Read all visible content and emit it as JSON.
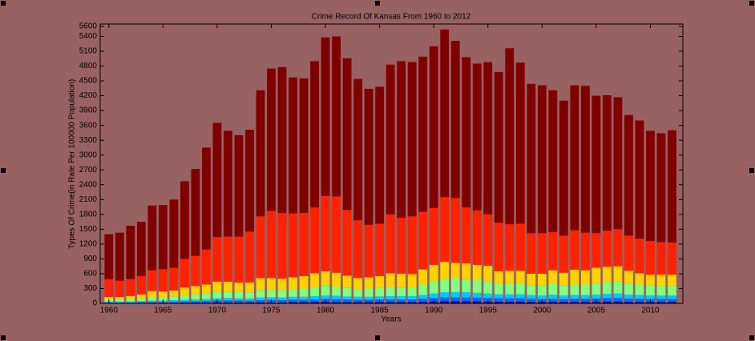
{
  "chart_data": {
    "type": "stacked_bar",
    "title": "Crime Record Of Kansas From 1960 to 2012",
    "xlabel": "Years",
    "ylabel": "Types Of Crime(in Rate Per 100000 Population)",
    "x": [
      1960,
      1961,
      1962,
      1963,
      1964,
      1965,
      1966,
      1967,
      1968,
      1969,
      1970,
      1971,
      1972,
      1973,
      1974,
      1975,
      1976,
      1977,
      1978,
      1979,
      1980,
      1981,
      1982,
      1983,
      1984,
      1985,
      1986,
      1987,
      1988,
      1989,
      1990,
      1991,
      1992,
      1993,
      1994,
      1995,
      1996,
      1997,
      1998,
      1999,
      2000,
      2001,
      2002,
      2003,
      2004,
      2005,
      2006,
      2007,
      2008,
      2009,
      2010,
      2011,
      2012
    ],
    "series": [
      {
        "color": "#00009c",
        "values": [
          5,
          5,
          5,
          10,
          10,
          10,
          10,
          15,
          15,
          15,
          20,
          20,
          20,
          20,
          20,
          20,
          20,
          25,
          25,
          25,
          30,
          25,
          25,
          25,
          25,
          25,
          25,
          25,
          25,
          30,
          35,
          40,
          40,
          40,
          40,
          35,
          35,
          35,
          35,
          30,
          30,
          30,
          30,
          30,
          30,
          30,
          35,
          35,
          30,
          30,
          30,
          30,
          30
        ]
      },
      {
        "color": "#0066ff",
        "values": [
          15,
          15,
          15,
          15,
          20,
          20,
          25,
          25,
          30,
          35,
          40,
          40,
          40,
          35,
          45,
          50,
          45,
          50,
          50,
          55,
          60,
          60,
          55,
          50,
          50,
          55,
          55,
          55,
          55,
          65,
          75,
          85,
          85,
          85,
          80,
          75,
          70,
          70,
          70,
          65,
          60,
          65,
          60,
          65,
          65,
          70,
          75,
          75,
          70,
          65,
          60,
          60,
          60
        ]
      },
      {
        "color": "#00ccff",
        "values": [
          15,
          15,
          20,
          20,
          25,
          25,
          30,
          30,
          35,
          40,
          45,
          50,
          45,
          45,
          55,
          55,
          55,
          60,
          60,
          65,
          70,
          70,
          60,
          60,
          60,
          60,
          65,
          65,
          65,
          75,
          90,
          100,
          100,
          100,
          95,
          90,
          80,
          80,
          80,
          75,
          70,
          80,
          70,
          75,
          75,
          80,
          85,
          90,
          80,
          75,
          70,
          70,
          70
        ]
      },
      {
        "color": "#80ff80",
        "values": [
          45,
          45,
          50,
          55,
          75,
          75,
          75,
          90,
          100,
          110,
          125,
          130,
          125,
          120,
          150,
          155,
          150,
          155,
          165,
          185,
          200,
          185,
          170,
          155,
          165,
          170,
          185,
          175,
          185,
          210,
          240,
          275,
          285,
          265,
          255,
          250,
          225,
          225,
          225,
          200,
          200,
          215,
          200,
          210,
          210,
          220,
          235,
          240,
          220,
          210,
          200,
          190,
          190
        ]
      },
      {
        "color": "#ffd200",
        "values": [
          50,
          50,
          60,
          80,
          120,
          110,
          120,
          160,
          170,
          180,
          210,
          200,
          190,
          200,
          240,
          230,
          230,
          240,
          250,
          280,
          290,
          280,
          250,
          220,
          230,
          240,
          280,
          280,
          260,
          310,
          340,
          340,
          310,
          320,
          310,
          310,
          240,
          250,
          250,
          230,
          240,
          280,
          260,
          300,
          290,
          320,
          310,
          310,
          260,
          230,
          220,
          230,
          230
        ]
      },
      {
        "color": "#ff2200",
        "values": [
          360,
          330,
          340,
          370,
          420,
          450,
          460,
          580,
          610,
          710,
          900,
          910,
          930,
          1030,
          1250,
          1360,
          1330,
          1290,
          1280,
          1330,
          1520,
          1540,
          1330,
          1170,
          1060,
          1060,
          1190,
          1130,
          1170,
          1160,
          1150,
          1310,
          1310,
          1130,
          1100,
          1040,
          980,
          940,
          950,
          820,
          820,
          770,
          750,
          800,
          760,
          700,
          730,
          750,
          710,
          700,
          680,
          660,
          650
        ]
      },
      {
        "color": "#800000",
        "values": [
          910,
          970,
          1080,
          1100,
          1310,
          1300,
          1380,
          1570,
          1760,
          2060,
          2310,
          2140,
          2050,
          2060,
          2550,
          2880,
          2950,
          2750,
          2720,
          2960,
          3210,
          3240,
          3070,
          2860,
          2750,
          2770,
          3030,
          3170,
          3120,
          3140,
          3270,
          3390,
          3180,
          3040,
          2970,
          3080,
          3050,
          3560,
          3260,
          3020,
          2990,
          2870,
          2730,
          2930,
          2970,
          2780,
          2740,
          2670,
          2440,
          2390,
          2230,
          2200,
          2270
        ]
      }
    ],
    "xlim": [
      1959.2,
      2013
    ],
    "xticks": [
      1960,
      1965,
      1970,
      1975,
      1980,
      1985,
      1990,
      1995,
      2000,
      2005,
      2010
    ],
    "ylim": [
      0,
      5650
    ],
    "yticks": [
      0,
      300,
      600,
      900,
      1200,
      1500,
      1800,
      2100,
      2400,
      2700,
      3000,
      3300,
      3600,
      3900,
      4200,
      4500,
      4800,
      5100,
      5400,
      5600
    ]
  }
}
